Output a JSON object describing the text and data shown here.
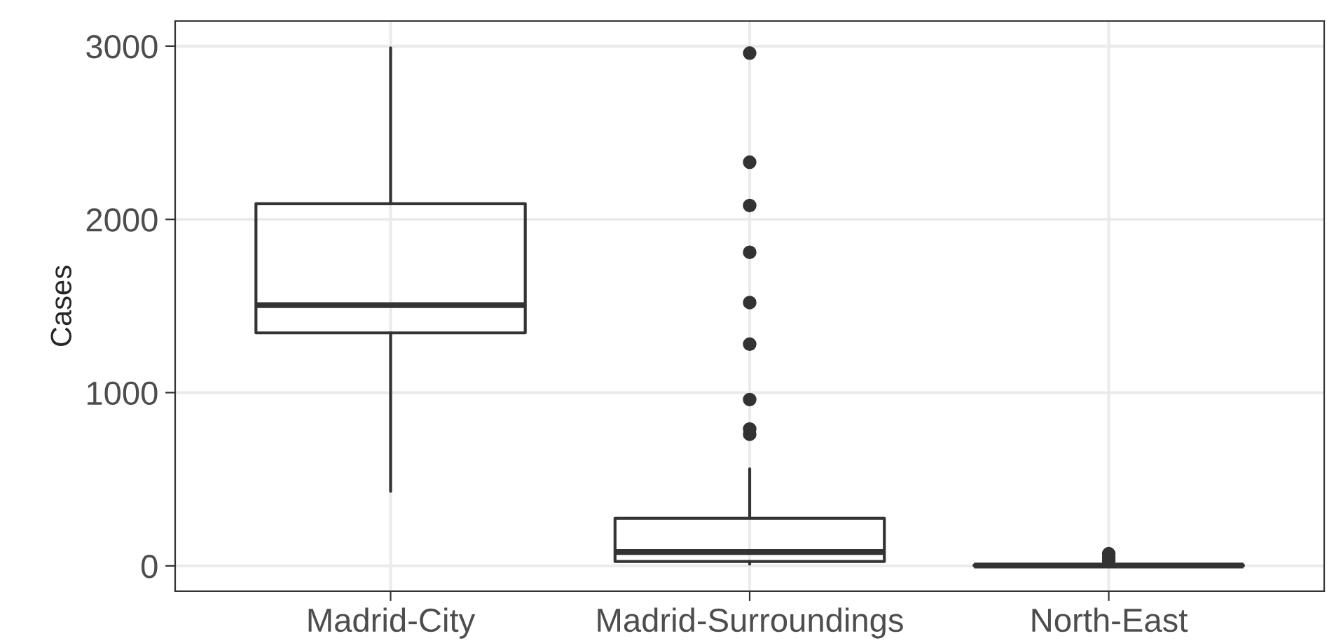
{
  "chart_data": {
    "type": "box",
    "ylabel": "Cases",
    "categories": [
      "Madrid-City",
      "Madrid-Surroundings",
      "North-East"
    ],
    "boxes": [
      {
        "low": 430,
        "q1": 1345,
        "median": 1505,
        "q3": 2090,
        "high": 2990
      },
      {
        "low": 10,
        "q1": 25,
        "median": 80,
        "q3": 275,
        "high": 560,
        "outliers": [
          760,
          790,
          960,
          1280,
          1520,
          1810,
          2080,
          2330,
          2960
        ]
      },
      {
        "low": 0,
        "q1": 0,
        "median": 2,
        "q3": 5,
        "high": 12,
        "outliers": [
          30,
          50,
          70
        ]
      }
    ],
    "color": "#333333",
    "ylim": [
      -146,
      3145
    ],
    "yticks": [
      0,
      1000,
      2000,
      3000
    ],
    "grid": true
  }
}
